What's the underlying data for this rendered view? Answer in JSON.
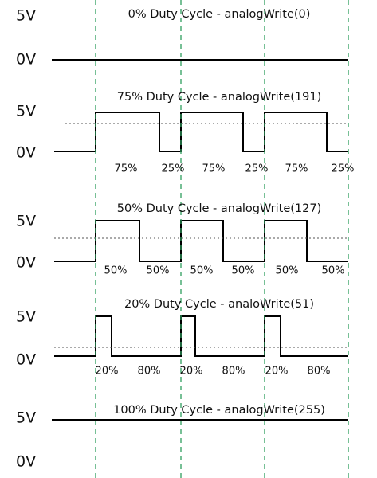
{
  "panels": [
    {
      "title": "0% Duty Cycle - analogWrite(0)",
      "high": "5V",
      "low": "0V"
    },
    {
      "title": "75% Duty Cycle - analogWrite(191)",
      "high": "5V",
      "low": "0V",
      "labels": [
        "75%",
        "25%",
        "75%",
        "25%",
        "75%",
        "25%"
      ]
    },
    {
      "title": "50% Duty Cycle - analogWrite(127)",
      "high": "5V",
      "low": "0V",
      "labels": [
        "50%",
        "50%",
        "50%",
        "50%",
        "50%",
        "50%"
      ]
    },
    {
      "title": "20%  Duty Cycle - analoWrite(51)",
      "high": "5V",
      "low": "0V",
      "labels": [
        "20%",
        "80%",
        "20%",
        "80%",
        "20%",
        "80%"
      ]
    },
    {
      "title": "100% Duty Cycle - analogWrite(255)",
      "high": "5V",
      "low": "0V"
    }
  ]
}
